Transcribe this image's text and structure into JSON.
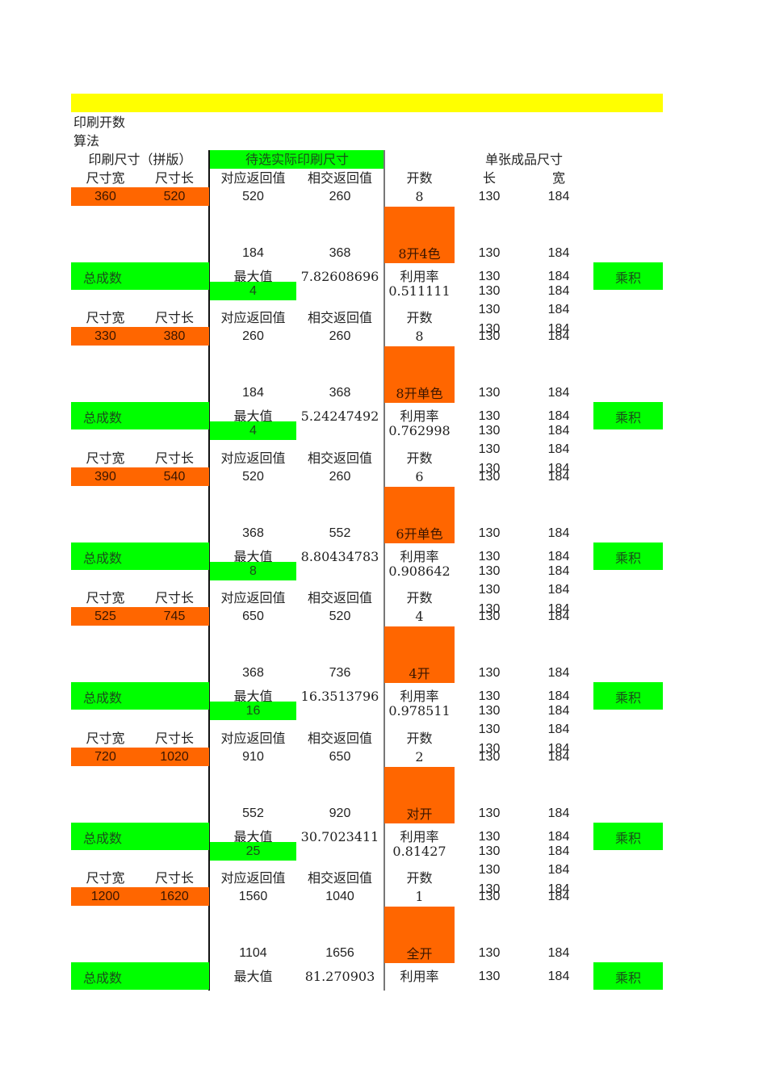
{
  "header": {
    "title_line1": "印刷开数",
    "title_line2": "算法",
    "print_size_label": "印刷尺寸（拼版）",
    "candidate_label": "待选实际印刷尺寸",
    "product_size_label": "单张成品尺寸",
    "col_length": "长",
    "col_width": "宽"
  },
  "labels": {
    "size_width": "尺寸宽",
    "size_length": "尺寸长",
    "corr_return": "对应返回值",
    "cross_return": "相交返回值",
    "open_count": "开数",
    "total": "总成数",
    "max_value": "最大值",
    "utilization": "利用率",
    "product": "乘积"
  },
  "product_size": {
    "length": "130",
    "width": "184"
  },
  "colors": {
    "banner": "#ffff00",
    "orange": "#ff6600",
    "green": "#00ff00"
  },
  "blocks": [
    {
      "width": "360",
      "length": "520",
      "corr": "520",
      "cross": "260",
      "open": "8",
      "corr2": "184",
      "cross2": "368",
      "format": "8开4色",
      "max": "7.82608696",
      "util": "0.511111",
      "count": "4"
    },
    {
      "width": "330",
      "length": "380",
      "corr": "260",
      "cross": "260",
      "open": "8",
      "corr2": "184",
      "cross2": "368",
      "format": "8开单色",
      "max": "5.24247492",
      "util": "0.762998",
      "count": "4"
    },
    {
      "width": "390",
      "length": "540",
      "corr": "520",
      "cross": "260",
      "open": "6",
      "corr2": "368",
      "cross2": "552",
      "format": "6开单色",
      "max": "8.80434783",
      "util": "0.908642",
      "count": "8"
    },
    {
      "width": "525",
      "length": "745",
      "corr": "650",
      "cross": "520",
      "open": "4",
      "corr2": "368",
      "cross2": "736",
      "format": "4开",
      "max": "16.3513796",
      "util": "0.978511",
      "count": "16"
    },
    {
      "width": "720",
      "length": "1020",
      "corr": "910",
      "cross": "650",
      "open": "2",
      "corr2": "552",
      "cross2": "920",
      "format": "对开",
      "max": "30.7023411",
      "util": "0.81427",
      "count": "25"
    },
    {
      "width": "1200",
      "length": "1620",
      "corr": "1560",
      "cross": "1040",
      "open": "1",
      "corr2": "1104",
      "cross2": "1656",
      "format": "全开",
      "max": "81.270903",
      "util": "",
      "count": ""
    }
  ]
}
